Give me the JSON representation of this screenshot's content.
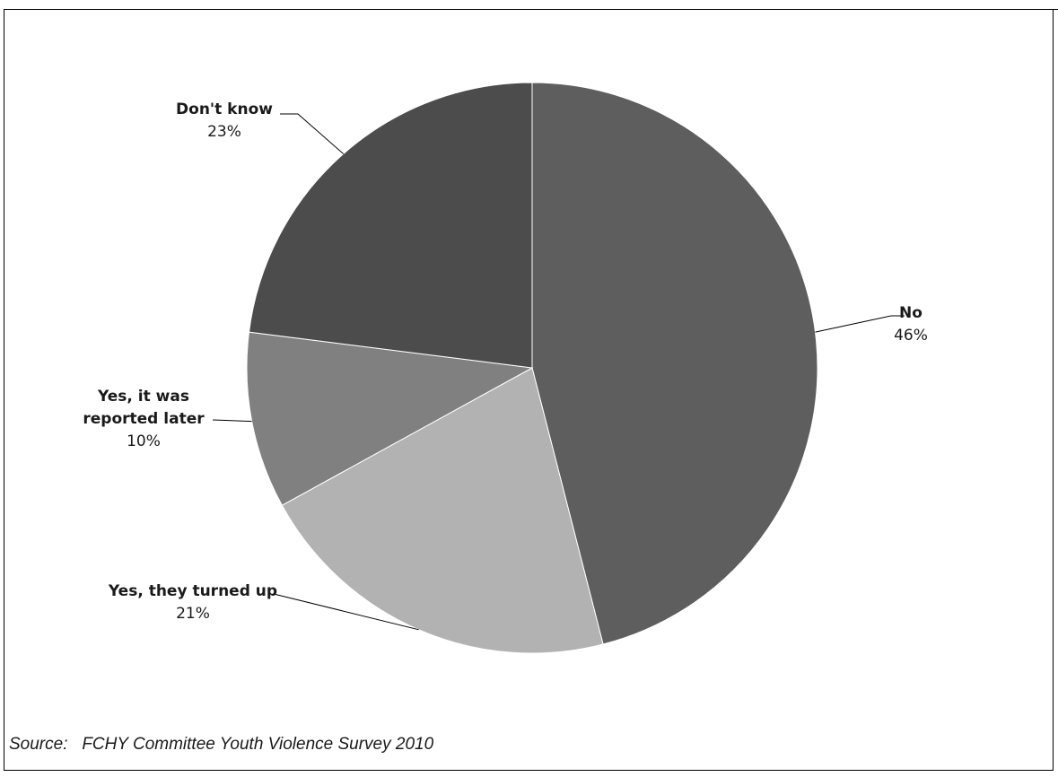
{
  "chart_data": {
    "type": "pie",
    "title": "",
    "slices": [
      {
        "label": "No",
        "percent_label": "46%",
        "value": 46,
        "color": "#5e5e5e"
      },
      {
        "label": "Yes, they turned up",
        "percent_label": "21%",
        "value": 21,
        "color": "#b2b2b2"
      },
      {
        "label": "Yes, it was reported later",
        "percent_label": "10%",
        "value": 10,
        "color": "#808080"
      },
      {
        "label": "Don't know",
        "percent_label": "23%",
        "value": 23,
        "color": "#4c4c4c"
      }
    ],
    "legend": "none",
    "start": "12 o'clock",
    "direction": "clockwise"
  },
  "source": {
    "prefix": "Source:",
    "text": "FCHY Committee Youth Violence Survey 2010"
  }
}
